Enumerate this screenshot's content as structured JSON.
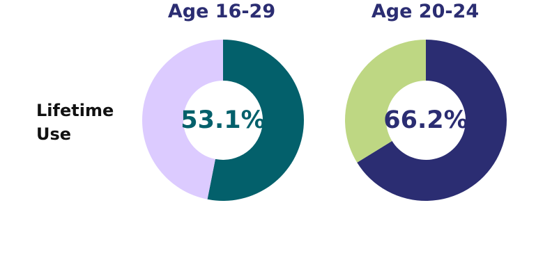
{
  "row_label": [
    "Lifetime",
    "Use"
  ],
  "colors": {
    "chart1_value": "#03606b",
    "chart1_rest": "#dccbff",
    "chart2_value": "#2b2d72",
    "chart2_rest": "#bed783",
    "title1": "#2b2d72",
    "title2": "#2b2d72",
    "label": "#111111",
    "center1": "#03606b",
    "center2": "#2b2d72"
  },
  "chart_data": [
    {
      "type": "pie",
      "title": "Age 16-29",
      "row": "Lifetime Use",
      "center_label": "53.1%",
      "slices": [
        {
          "value": 53.1
        },
        {
          "value": 46.9
        }
      ]
    },
    {
      "type": "pie",
      "title": "Age 20-24",
      "row": "Lifetime Use",
      "center_label": "66.2%",
      "slices": [
        {
          "value": 66.2
        },
        {
          "value": 33.8
        }
      ]
    }
  ]
}
